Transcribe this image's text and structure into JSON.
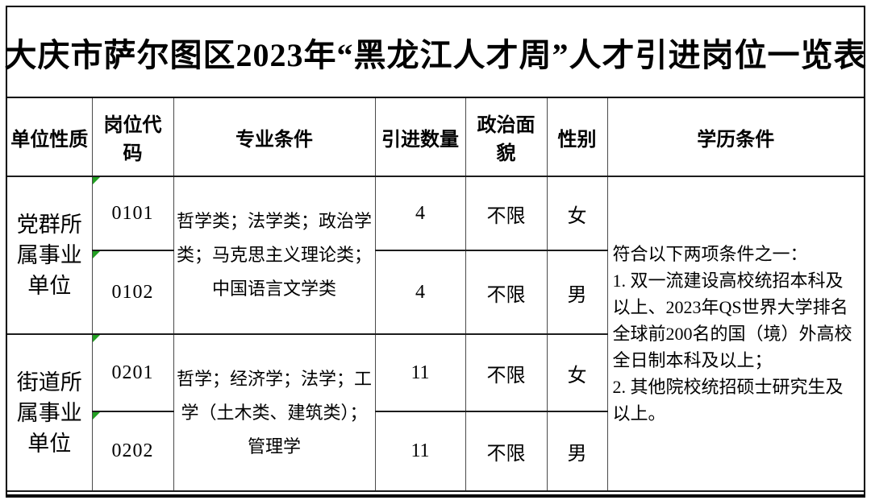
{
  "title": "大庆市萨尔图区2023年“黑龙江人才周”人才引进岗位一览表",
  "table": {
    "headers": [
      "单位性质",
      "岗位代码",
      "专业条件",
      "引进数量",
      "政治面貌",
      "性别",
      "学历条件"
    ],
    "groups": [
      {
        "unit_type": "党群所属事业单位",
        "major_requirement": "哲学类；法学类；政治学类；马克思主义理论类；中国语言文学类",
        "rows": [
          {
            "code": "0101",
            "count": "4",
            "political": "不限",
            "gender": "女"
          },
          {
            "code": "0102",
            "count": "4",
            "political": "不限",
            "gender": "男"
          }
        ]
      },
      {
        "unit_type": "街道所属事业单位",
        "major_requirement": "哲学；经济学；法学；工学（土木类、建筑类）；管理学",
        "rows": [
          {
            "code": "0201",
            "count": "11",
            "political": "不限",
            "gender": "女"
          },
          {
            "code": "0202",
            "count": "11",
            "political": "不限",
            "gender": "男"
          }
        ]
      }
    ],
    "education_requirement": {
      "intro": "符合以下两项条件之一：",
      "item1": "1. 双一流建设高校统招本科及以上、2023年QS世界大学排名全球前200名的国（境）外高校全日制本科及以上；",
      "item2": "2. 其他院校统招硕士研究生及以上。"
    }
  },
  "colors": {
    "frame_border": "#000000",
    "cell_border": "#4a4a4a",
    "marker_green": "#22a022",
    "text": "#000000",
    "background": "#ffffff"
  }
}
